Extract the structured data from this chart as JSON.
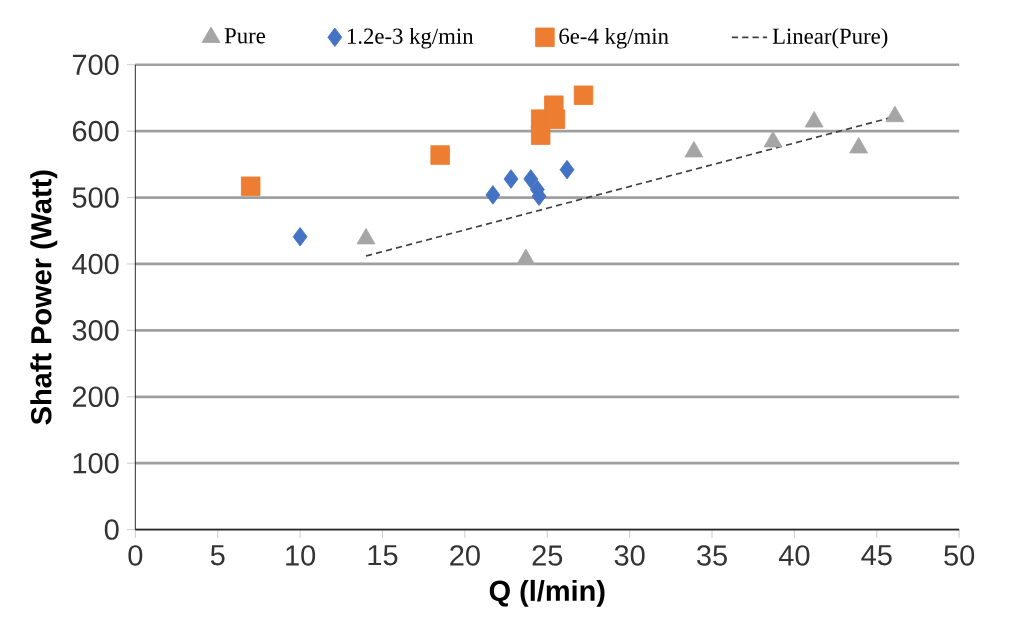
{
  "chart_data": {
    "type": "scatter",
    "xlabel": "Q (l/min)",
    "ylabel": "Shaft Power (Watt)",
    "xlim": [
      0,
      50
    ],
    "ylim": [
      0,
      700
    ],
    "xticks": [
      0,
      5,
      10,
      15,
      20,
      25,
      30,
      35,
      40,
      45,
      50
    ],
    "yticks": [
      0,
      100,
      200,
      300,
      400,
      500,
      600,
      700
    ],
    "grid": "y",
    "legend": "top",
    "series": [
      {
        "name": "Pure",
        "color": "#a5a5a5",
        "marker": "triangle",
        "x": [
          14.0,
          23.7,
          33.9,
          38.7,
          41.2,
          43.9,
          46.1
        ],
        "values": [
          438,
          407,
          569,
          584,
          614,
          575,
          622
        ]
      },
      {
        "name": "1.2e-3 kg/min",
        "color": "#4472c4",
        "marker": "diamond",
        "x": [
          10.0,
          21.7,
          22.8,
          24.0,
          24.4,
          24.5,
          26.2
        ],
        "values": [
          441,
          504,
          528,
          528,
          512,
          502,
          542
        ]
      },
      {
        "name": "6e-4 kg/min",
        "color": "#ed7d31",
        "marker": "square",
        "x": [
          7.0,
          18.5,
          24.6,
          24.6,
          25.4,
          25.5,
          27.2
        ],
        "values": [
          517,
          564,
          594,
          618,
          639,
          618,
          654
        ]
      },
      {
        "name": "Linear(Pure)",
        "type": "line",
        "color": "#404040",
        "line_style": "dashed",
        "marker": "none",
        "x": [
          14.0,
          46.1
        ],
        "values": [
          412,
          622
        ]
      }
    ]
  }
}
